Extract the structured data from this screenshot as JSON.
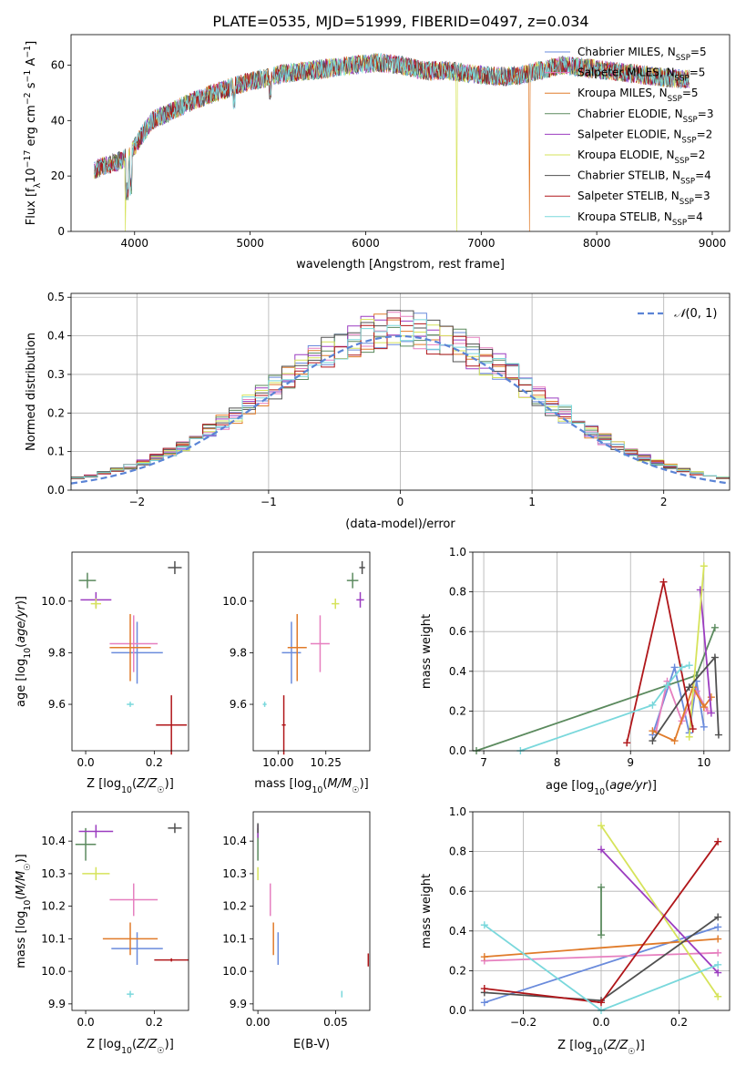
{
  "figure": {
    "title": "PLATE=0535, MJD=51999, FIBERID=0497, z=0.034"
  },
  "colors": {
    "Chabrier MILES": "#6a8bdc",
    "Salpeter MILES": "#e67fbf",
    "Kroupa MILES": "#e07b2a",
    "Chabrier ELODIE": "#5b8a5e",
    "Salpeter ELODIE": "#9b3cc0",
    "Kroupa ELODIE": "#d6e35a",
    "Chabrier STELIB": "#505050",
    "Salpeter STELIB": "#b0161a",
    "Kroupa STELIB": "#7ad8dc"
  },
  "chart_data": [
    {
      "id": "spectrum",
      "type": "line",
      "title": "PLATE=0535, MJD=51999, FIBERID=0497, z=0.034",
      "xlabel": "wavelength [Angstrom, rest frame]",
      "ylabel": "Flux [f_λ 10^-17 erg cm^-2 s^-1 A^-1]",
      "xlim": [
        3450,
        9150
      ],
      "ylim": [
        0,
        71
      ],
      "xticks": [
        4000,
        5000,
        6000,
        7000,
        8000,
        9000
      ],
      "yticks": [
        0,
        20,
        40,
        60
      ],
      "legend_position": "top-right",
      "legend": [
        "Chabrier MILES, N_SSP=5",
        "Salpeter MILES, N_SSP=5",
        "Kroupa MILES, N_SSP=5",
        "Chabrier ELODIE, N_SSP=3",
        "Salpeter ELODIE, N_SSP=2",
        "Kroupa ELODIE, N_SSP=2",
        "Chabrier STELIB, N_SSP=4",
        "Salpeter STELIB, N_SSP=3",
        "Kroupa STELIB, N_SSP=4"
      ],
      "continuum": {
        "wavelength": [
          3650,
          3750,
          3850,
          3950,
          4050,
          4150,
          4300,
          4500,
          4700,
          4900,
          5100,
          5300,
          5500,
          5700,
          5900,
          6100,
          6300,
          6500,
          6700,
          6900,
          7100,
          7300,
          7500,
          7700,
          7900,
          8100,
          8300,
          8500,
          8700,
          8800
        ],
        "flux": [
          22,
          24,
          25,
          27,
          34,
          40,
          43,
          47,
          50,
          53,
          55,
          57,
          58,
          59,
          60,
          61,
          60,
          58,
          58,
          57,
          56,
          56,
          58,
          60,
          59,
          58,
          57,
          56,
          55,
          55
        ]
      },
      "drops": [
        {
          "series": "Kroupa ELODIE",
          "wavelength": 3920
        },
        {
          "series": "Kroupa ELODIE",
          "wavelength": 6790
        },
        {
          "series": "Kroupa MILES",
          "wavelength": 7420
        }
      ]
    },
    {
      "id": "residuals",
      "type": "line",
      "xlabel": "(data-model)/error",
      "ylabel": "Normed distribution",
      "xlim": [
        -2.5,
        2.5
      ],
      "ylim": [
        0,
        0.51
      ],
      "xticks": [
        -2,
        -1,
        0,
        1,
        2
      ],
      "yticks": [
        0.0,
        0.1,
        0.2,
        0.3,
        0.4,
        0.5
      ],
      "grid": true,
      "legend_position": "top-right",
      "reference": "N(0,1)",
      "bin_width": 0.1
    },
    {
      "id": "age_vs_Z",
      "type": "scatter",
      "xlabel": "Z [log10(Z/Z☉)]",
      "ylabel": "age [log10(age/yr)]",
      "xlim": [
        -0.04,
        0.3
      ],
      "ylim": [
        9.42,
        10.19
      ],
      "xticks": [
        0.0,
        0.2
      ],
      "yticks": [
        9.6,
        9.8,
        10.0
      ],
      "points": [
        {
          "series": "Chabrier MILES",
          "x": 0.15,
          "y": 9.8,
          "xerr": 0.075,
          "yerr": 0.12
        },
        {
          "series": "Salpeter MILES",
          "x": 0.14,
          "y": 9.835,
          "xerr": 0.07,
          "yerr": 0.11
        },
        {
          "series": "Kroupa MILES",
          "x": 0.13,
          "y": 9.82,
          "xerr": 0.06,
          "yerr": 0.13
        },
        {
          "series": "Chabrier ELODIE",
          "x": 0.005,
          "y": 10.08,
          "xerr": 0.025,
          "yerr": 0.03
        },
        {
          "series": "Salpeter ELODIE",
          "x": 0.03,
          "y": 10.005,
          "xerr": 0.045,
          "yerr": 0.03
        },
        {
          "series": "Kroupa ELODIE",
          "x": 0.03,
          "y": 9.99,
          "xerr": 0.015,
          "yerr": 0.02
        },
        {
          "series": "Chabrier STELIB",
          "x": 0.26,
          "y": 10.13,
          "xerr": 0.02,
          "yerr": 0.025
        },
        {
          "series": "Salpeter STELIB",
          "x": 0.25,
          "y": 9.52,
          "xerr": 0.045,
          "yerr": 0.115
        },
        {
          "series": "Kroupa STELIB",
          "x": 0.13,
          "y": 9.6,
          "xerr": 0.01,
          "yerr": 0.01
        }
      ]
    },
    {
      "id": "age_vs_mass",
      "type": "scatter",
      "xlabel": "mass [log10(M/M☉)]",
      "ylabel": "",
      "xlim": [
        9.87,
        10.48
      ],
      "ylim": [
        9.42,
        10.19
      ],
      "xticks": [
        10.0,
        10.25
      ],
      "yticks": [
        9.6,
        9.8,
        10.0
      ],
      "points": [
        {
          "series": "Chabrier MILES",
          "x": 10.07,
          "y": 9.8,
          "xerr": 0.05,
          "yerr": 0.12
        },
        {
          "series": "Salpeter MILES",
          "x": 10.22,
          "y": 9.835,
          "xerr": 0.05,
          "yerr": 0.11
        },
        {
          "series": "Kroupa MILES",
          "x": 10.1,
          "y": 9.82,
          "xerr": 0.05,
          "yerr": 0.13
        },
        {
          "series": "Chabrier ELODIE",
          "x": 10.39,
          "y": 10.08,
          "xerr": 0.03,
          "yerr": 0.03
        },
        {
          "series": "Salpeter ELODIE",
          "x": 10.43,
          "y": 10.005,
          "xerr": 0.02,
          "yerr": 0.03
        },
        {
          "series": "Kroupa ELODIE",
          "x": 10.3,
          "y": 9.99,
          "xerr": 0.02,
          "yerr": 0.02
        },
        {
          "series": "Chabrier STELIB",
          "x": 10.44,
          "y": 10.13,
          "xerr": 0.015,
          "yerr": 0.025
        },
        {
          "series": "Salpeter STELIB",
          "x": 10.03,
          "y": 9.52,
          "xerr": 0.01,
          "yerr": 0.115
        },
        {
          "series": "Kroupa STELIB",
          "x": 9.93,
          "y": 9.6,
          "xerr": 0.01,
          "yerr": 0.01
        }
      ]
    },
    {
      "id": "weight_vs_age",
      "type": "line",
      "xlabel": "age [log10(age/yr)]",
      "ylabel": "mass weight",
      "xlim": [
        6.85,
        10.35
      ],
      "ylim": [
        0,
        1.0
      ],
      "xticks": [
        7,
        8,
        9,
        10
      ],
      "yticks": [
        0.0,
        0.2,
        0.4,
        0.6,
        0.8,
        1.0
      ],
      "grid": true,
      "series": [
        {
          "series": "Chabrier MILES",
          "x": [
            9.3,
            9.6,
            9.8,
            9.9,
            10.0
          ],
          "y": [
            0.08,
            0.42,
            0.09,
            0.35,
            0.12
          ]
        },
        {
          "series": "Salpeter MILES",
          "x": [
            9.35,
            9.5,
            9.7,
            9.9,
            10.05
          ],
          "y": [
            0.1,
            0.35,
            0.15,
            0.3,
            0.2
          ]
        },
        {
          "series": "Kroupa MILES",
          "x": [
            9.3,
            9.6,
            9.85,
            10.0,
            10.1
          ],
          "y": [
            0.1,
            0.05,
            0.32,
            0.22,
            0.27
          ]
        },
        {
          "series": "Chabrier ELODIE",
          "x": [
            6.9,
            9.9,
            10.15
          ],
          "y": [
            0.0,
            0.38,
            0.62
          ]
        },
        {
          "series": "Salpeter ELODIE",
          "x": [
            9.95,
            10.1
          ],
          "y": [
            0.81,
            0.19
          ]
        },
        {
          "series": "Kroupa ELODIE",
          "x": [
            9.8,
            10.0
          ],
          "y": [
            0.07,
            0.93
          ]
        },
        {
          "series": "Chabrier STELIB",
          "x": [
            9.3,
            9.8,
            10.15,
            10.2
          ],
          "y": [
            0.05,
            0.32,
            0.47,
            0.08
          ]
        },
        {
          "series": "Salpeter STELIB",
          "x": [
            8.95,
            9.45,
            9.85
          ],
          "y": [
            0.04,
            0.85,
            0.11
          ]
        },
        {
          "series": "Kroupa STELIB",
          "x": [
            7.5,
            9.3,
            9.5,
            9.7,
            9.8
          ],
          "y": [
            0.0,
            0.23,
            0.33,
            0.42,
            0.43
          ]
        }
      ]
    },
    {
      "id": "mass_vs_Z",
      "type": "scatter",
      "xlabel": "Z [log10(Z/Z☉)]",
      "ylabel": "mass [log10(M/M☉)]",
      "xlim": [
        -0.04,
        0.3
      ],
      "ylim": [
        9.88,
        10.49
      ],
      "xticks": [
        0.0,
        0.2
      ],
      "yticks": [
        9.9,
        10.0,
        10.1,
        10.2,
        10.3,
        10.4
      ],
      "points": [
        {
          "series": "Chabrier MILES",
          "x": 0.15,
          "y": 10.07,
          "xerr": 0.075,
          "yerr": 0.05
        },
        {
          "series": "Salpeter MILES",
          "x": 0.14,
          "y": 10.22,
          "xerr": 0.07,
          "yerr": 0.05
        },
        {
          "series": "Kroupa MILES",
          "x": 0.13,
          "y": 10.1,
          "xerr": 0.08,
          "yerr": 0.05
        },
        {
          "series": "Chabrier ELODIE",
          "x": 0.0,
          "y": 10.39,
          "xerr": 0.03,
          "yerr": 0.05
        },
        {
          "series": "Salpeter ELODIE",
          "x": 0.03,
          "y": 10.43,
          "xerr": 0.05,
          "yerr": 0.02
        },
        {
          "series": "Kroupa ELODIE",
          "x": 0.03,
          "y": 10.3,
          "xerr": 0.04,
          "yerr": 0.02
        },
        {
          "series": "Chabrier STELIB",
          "x": 0.26,
          "y": 10.44,
          "xerr": 0.02,
          "yerr": 0.015
        },
        {
          "series": "Salpeter STELIB",
          "x": 0.25,
          "y": 10.035,
          "xerr": 0.05,
          "yerr": 0.005
        },
        {
          "series": "Kroupa STELIB",
          "x": 0.13,
          "y": 9.93,
          "xerr": 0.01,
          "yerr": 0.01
        }
      ]
    },
    {
      "id": "mass_vs_EBV",
      "type": "scatter",
      "xlabel": "E(B-V)",
      "ylabel": "",
      "xlim": [
        -0.003,
        0.072
      ],
      "ylim": [
        9.88,
        10.49
      ],
      "xticks": [
        0.0,
        0.05
      ],
      "yticks": [
        9.9,
        10.0,
        10.1,
        10.2,
        10.3,
        10.4
      ],
      "points": [
        {
          "series": "Chabrier MILES",
          "x": 0.013,
          "y": 10.07,
          "yerr": 0.05
        },
        {
          "series": "Salpeter MILES",
          "x": 0.008,
          "y": 10.22,
          "yerr": 0.05
        },
        {
          "series": "Kroupa MILES",
          "x": 0.01,
          "y": 10.1,
          "yerr": 0.05
        },
        {
          "series": "Chabrier ELODIE",
          "x": 0.0,
          "y": 10.39,
          "yerr": 0.05
        },
        {
          "series": "Salpeter ELODIE",
          "x": 0.0,
          "y": 10.43,
          "yerr": 0.02
        },
        {
          "series": "Kroupa ELODIE",
          "x": 0.0,
          "y": 10.3,
          "yerr": 0.02
        },
        {
          "series": "Chabrier STELIB",
          "x": 0.0,
          "y": 10.44,
          "yerr": 0.015
        },
        {
          "series": "Salpeter STELIB",
          "x": 0.071,
          "y": 10.035,
          "yerr": 0.02
        },
        {
          "series": "Kroupa STELIB",
          "x": 0.054,
          "y": 9.93,
          "yerr": 0.01
        }
      ]
    },
    {
      "id": "weight_vs_Z",
      "type": "line",
      "xlabel": "Z [log10(Z/Z☉)]",
      "ylabel": "mass weight",
      "xlim": [
        -0.33,
        0.33
      ],
      "ylim": [
        0,
        1.0
      ],
      "xticks": [
        -0.2,
        0.0,
        0.2
      ],
      "yticks": [
        0.0,
        0.2,
        0.4,
        0.6,
        0.8,
        1.0
      ],
      "grid": true,
      "series": [
        {
          "series": "Chabrier MILES",
          "x": [
            -0.3,
            0.3
          ],
          "y": [
            0.04,
            0.42
          ]
        },
        {
          "series": "Salpeter MILES",
          "x": [
            -0.3,
            0.3
          ],
          "y": [
            0.25,
            0.29
          ]
        },
        {
          "series": "Kroupa MILES",
          "x": [
            -0.3,
            0.3
          ],
          "y": [
            0.27,
            0.36
          ]
        },
        {
          "series": "Chabrier ELODIE",
          "x": [
            0.0,
            0.0
          ],
          "y": [
            0.38,
            0.62
          ]
        },
        {
          "series": "Salpeter ELODIE",
          "x": [
            0.0,
            0.3
          ],
          "y": [
            0.81,
            0.19
          ]
        },
        {
          "series": "Kroupa ELODIE",
          "x": [
            0.0,
            0.3
          ],
          "y": [
            0.93,
            0.07
          ]
        },
        {
          "series": "Chabrier STELIB",
          "x": [
            -0.3,
            0.0,
            0.3
          ],
          "y": [
            0.09,
            0.05,
            0.47
          ]
        },
        {
          "series": "Salpeter STELIB",
          "x": [
            -0.3,
            0.0,
            0.3
          ],
          "y": [
            0.11,
            0.04,
            0.85
          ]
        },
        {
          "series": "Kroupa STELIB",
          "x": [
            -0.3,
            0.0,
            0.3
          ],
          "y": [
            0.43,
            0.0,
            0.23
          ]
        }
      ]
    }
  ]
}
